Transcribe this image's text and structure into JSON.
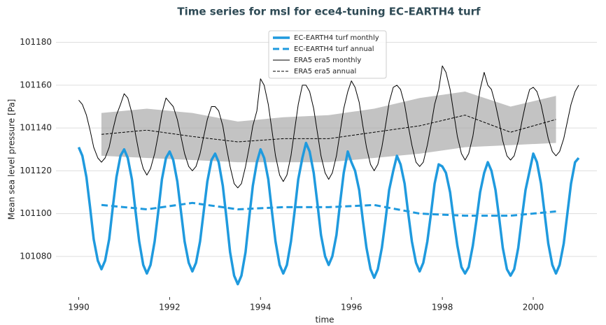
{
  "chart_data": {
    "type": "line",
    "title": "Time series for msl for ece4-tuning EC-EARTH4 turf",
    "xlabel": "time",
    "ylabel": "Mean sea level pressure [Pa]",
    "xlim": [
      1989.5,
      2001.4
    ],
    "ylim": [
      101061,
      101190
    ],
    "xticks": [
      1990,
      1992,
      1994,
      1996,
      1998,
      2000
    ],
    "yticks": [
      101080,
      101100,
      101120,
      101140,
      101160,
      101180
    ],
    "grid": true,
    "legend": "upper center",
    "x": [
      1990,
      1990.08,
      1990.17,
      1990.25,
      1990.33,
      1990.42,
      1990.5,
      1990.58,
      1990.67,
      1990.75,
      1990.83,
      1990.92,
      1991,
      1991.08,
      1991.17,
      1991.25,
      1991.33,
      1991.42,
      1991.5,
      1991.58,
      1991.67,
      1991.75,
      1991.83,
      1991.92,
      1992,
      1992.08,
      1992.17,
      1992.25,
      1992.33,
      1992.42,
      1992.5,
      1992.58,
      1992.67,
      1992.75,
      1992.83,
      1992.92,
      1993,
      1993.08,
      1993.17,
      1993.25,
      1993.33,
      1993.42,
      1993.5,
      1993.58,
      1993.67,
      1993.75,
      1993.83,
      1993.92,
      1994,
      1994.08,
      1994.17,
      1994.25,
      1994.33,
      1994.42,
      1994.5,
      1994.58,
      1994.67,
      1994.75,
      1994.83,
      1994.92,
      1995,
      1995.08,
      1995.17,
      1995.25,
      1995.33,
      1995.42,
      1995.5,
      1995.58,
      1995.67,
      1995.75,
      1995.83,
      1995.92,
      1996,
      1996.08,
      1996.17,
      1996.25,
      1996.33,
      1996.42,
      1996.5,
      1996.58,
      1996.67,
      1996.75,
      1996.83,
      1996.92,
      1997,
      1997.08,
      1997.17,
      1997.25,
      1997.33,
      1997.42,
      1997.5,
      1997.58,
      1997.67,
      1997.75,
      1997.83,
      1997.92,
      1998,
      1998.08,
      1998.17,
      1998.25,
      1998.33,
      1998.42,
      1998.5,
      1998.58,
      1998.67,
      1998.75,
      1998.83,
      1998.92,
      1999,
      1999.08,
      1999.17,
      1999.25,
      1999.33,
      1999.42,
      1999.5,
      1999.58,
      1999.67,
      1999.75,
      1999.83,
      1999.92,
      2000,
      2000.08,
      2000.17,
      2000.25,
      2000.33,
      2000.42,
      2000.5,
      2000.58,
      2000.67,
      2000.75,
      2000.83,
      2000.92,
      2001
    ],
    "series": [
      {
        "name": "EC-EARTH4 turf monthly",
        "color": "#1f9ade",
        "width": 3.5,
        "dash": false,
        "values": [
          101131,
          101127,
          101117,
          101103,
          101088,
          101078,
          101074,
          101078,
          101088,
          101103,
          101117,
          101127,
          101130,
          101126,
          101116,
          101101,
          101087,
          101076,
          101072,
          101076,
          101087,
          101101,
          101116,
          101126,
          101129,
          101125,
          101115,
          101101,
          101087,
          101077,
          101073,
          101077,
          101087,
          101101,
          101115,
          101125,
          101128,
          101124,
          101113,
          101098,
          101082,
          101071,
          101067,
          101071,
          101082,
          101098,
          101113,
          101124,
          101130,
          101126,
          101116,
          101101,
          101087,
          101076,
          101072,
          101076,
          101087,
          101101,
          101116,
          101126,
          101133,
          101129,
          101119,
          101105,
          101090,
          101080,
          101076,
          101080,
          101090,
          101105,
          101119,
          101129,
          101124,
          101120,
          101111,
          101097,
          101084,
          101074,
          101070,
          101074,
          101084,
          101097,
          101111,
          101120,
          101127,
          101123,
          101114,
          101100,
          101087,
          101077,
          101073,
          101077,
          101087,
          101100,
          101114,
          101123,
          101122,
          101119,
          101110,
          101097,
          101085,
          101075,
          101072,
          101075,
          101085,
          101097,
          101110,
          101119,
          101124,
          101120,
          101111,
          101098,
          101084,
          101074,
          101071,
          101074,
          101084,
          101098,
          101111,
          101120,
          101128,
          101124,
          101114,
          101100,
          101086,
          101076,
          101072,
          101076,
          101086,
          101100,
          101114,
          101124,
          101126
        ]
      },
      {
        "name": "EC-EARTH4 turf annual",
        "color": "#1f9ade",
        "width": 3,
        "dash": true,
        "x": [
          1990.5,
          1991.5,
          1992.5,
          1993.5,
          1994.5,
          1995.5,
          1996.5,
          1997.5,
          1998.5,
          1999.5,
          2000.5
        ],
        "values": [
          101104,
          101102,
          101105,
          101102,
          101103,
          101103,
          101104,
          101100,
          101099,
          101099,
          101101
        ]
      },
      {
        "name": "ERA5 era5 monthly",
        "color": "#000000",
        "width": 1,
        "dash": false,
        "values": [
          101153,
          101151,
          101146,
          101139,
          101131,
          101126,
          101124,
          101126,
          101131,
          101139,
          101146,
          101151,
          101156,
          101154,
          101147,
          101137,
          101128,
          101121,
          101118,
          101121,
          101128,
          101137,
          101147,
          101154,
          101152,
          101150,
          101144,
          101136,
          101128,
          101122,
          101120,
          101122,
          101128,
          101136,
          101144,
          101150,
          101150,
          101148,
          101141,
          101131,
          101122,
          101114,
          101112,
          101114,
          101122,
          101131,
          101141,
          101148,
          101163,
          101160,
          101151,
          101139,
          101127,
          101118,
          101115,
          101118,
          101127,
          101139,
          101151,
          101160,
          101160,
          101157,
          101149,
          101138,
          101127,
          101119,
          101116,
          101119,
          101127,
          101138,
          101149,
          101157,
          101162,
          101159,
          101152,
          101141,
          101131,
          101123,
          101120,
          101123,
          101131,
          101141,
          101152,
          101159,
          101160,
          101158,
          101151,
          101141,
          101132,
          101124,
          101122,
          101124,
          101132,
          101141,
          101151,
          101158,
          101169,
          101166,
          101158,
          101147,
          101136,
          101128,
          101125,
          101128,
          101136,
          101147,
          101158,
          101166,
          101160,
          101158,
          101151,
          101143,
          101134,
          101127,
          101125,
          101127,
          101134,
          101143,
          101151,
          101158,
          101159,
          101157,
          101151,
          101143,
          101135,
          101129,
          101127,
          101129,
          101135,
          101143,
          101151,
          101157,
          101160
        ]
      },
      {
        "name": "ERA5 era5 annual",
        "color": "#000000",
        "width": 1,
        "dash": true,
        "x": [
          1990.5,
          1991.5,
          1992.5,
          1993.5,
          1994.5,
          1995.5,
          1996.5,
          1997.5,
          1998.5,
          1999.5,
          2000.5
        ],
        "values": [
          101137,
          101139,
          101136,
          101133.5,
          101135,
          101135,
          101138,
          101141,
          101146,
          101138,
          101144
        ],
        "band_low": [
          101127,
          101126,
          101125,
          101124,
          101124,
          101124,
          101126,
          101128,
          101131,
          101132,
          101133
        ],
        "band_high": [
          101147,
          101149,
          101147,
          101143,
          101145,
          101146,
          101149,
          101154,
          101157,
          101150,
          101155
        ],
        "band_color": "#a9a9a9"
      }
    ]
  }
}
